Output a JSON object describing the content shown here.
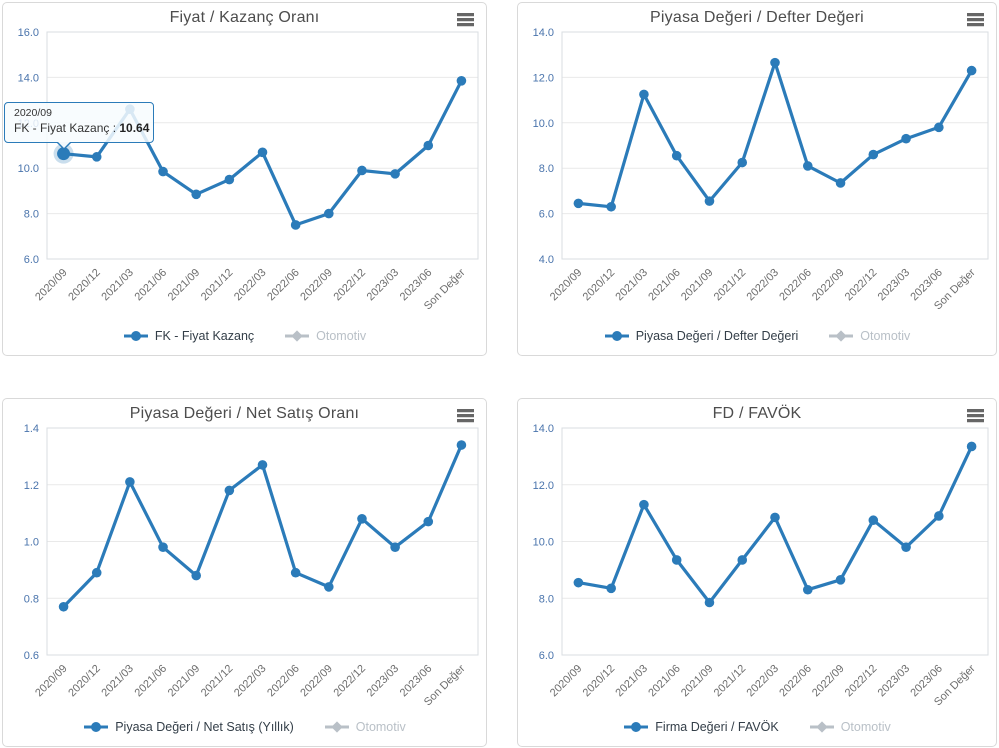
{
  "colors": {
    "series_blue": "#2b7bb9",
    "series_disabled_gray": "#b9c0c7",
    "y_tick_label": "#4a74ac",
    "x_tick_label": "#6d6d6d",
    "title_text": "#4d4d4d",
    "gridline": "#e9e9e9",
    "plot_border": "#d8dde2",
    "panel_border": "#d9d9d9",
    "legend_text": "#333e48",
    "legend_disabled_text": "#b9c0c7",
    "menu_icon": "#666666",
    "tooltip_border": "#2b7bb9",
    "tooltip_background": "rgba(247,251,254,0.85)"
  },
  "categories": [
    "2020/09",
    "2020/12",
    "2021/03",
    "2021/06",
    "2021/09",
    "2021/12",
    "2022/03",
    "2022/06",
    "2022/09",
    "2022/12",
    "2023/03",
    "2023/06",
    "Son Değer"
  ],
  "chart_data": [
    {
      "type": "line",
      "title": "Fiyat / Kazanç Oranı",
      "ylim": [
        6,
        16
      ],
      "ytick_step": 2,
      "grid": true,
      "legend_position": "bottom",
      "values": [
        10.64,
        10.5,
        12.6,
        9.85,
        8.85,
        9.5,
        10.7,
        7.5,
        8.0,
        9.9,
        9.75,
        11.0,
        13.85
      ],
      "legend": [
        {
          "label": "FK - Fiyat Kazanç",
          "active": true
        },
        {
          "label": "Otomotiv",
          "active": false
        }
      ],
      "tooltip": {
        "header": "2020/09",
        "label": "FK - Fiyat Kazanç : ",
        "value": "10.64",
        "point_index": 0
      }
    },
    {
      "type": "line",
      "title": "Piyasa Değeri / Defter Değeri",
      "ylim": [
        4,
        14
      ],
      "ytick_step": 2,
      "grid": true,
      "legend_position": "bottom",
      "values": [
        6.45,
        6.3,
        11.25,
        8.55,
        6.55,
        8.25,
        12.65,
        8.1,
        7.35,
        8.6,
        9.3,
        9.8,
        12.3
      ],
      "legend": [
        {
          "label": "Piyasa Değeri / Defter Değeri",
          "active": true
        },
        {
          "label": "Otomotiv",
          "active": false
        }
      ]
    },
    {
      "type": "line",
      "title": "Piyasa Değeri / Net Satış Oranı",
      "ylim": [
        0.6,
        1.4
      ],
      "ytick_step": 0.2,
      "grid": true,
      "legend_position": "bottom",
      "values": [
        0.77,
        0.89,
        1.21,
        0.98,
        0.88,
        1.18,
        1.27,
        0.89,
        0.84,
        1.08,
        0.98,
        1.07,
        1.34
      ],
      "legend": [
        {
          "label": "Piyasa Değeri / Net Satış (Yıllık)",
          "active": true
        },
        {
          "label": "Otomotiv",
          "active": false
        }
      ]
    },
    {
      "type": "line",
      "title": "FD / FAVÖK",
      "ylim": [
        6,
        14
      ],
      "ytick_step": 2,
      "grid": true,
      "legend_position": "bottom",
      "values": [
        8.55,
        8.35,
        11.3,
        9.35,
        7.85,
        9.35,
        10.85,
        8.3,
        8.65,
        10.75,
        9.8,
        10.9,
        13.35
      ],
      "legend": [
        {
          "label": "Firma Değeri / FAVÖK",
          "active": true
        },
        {
          "label": "Otomotiv",
          "active": false
        }
      ]
    }
  ]
}
